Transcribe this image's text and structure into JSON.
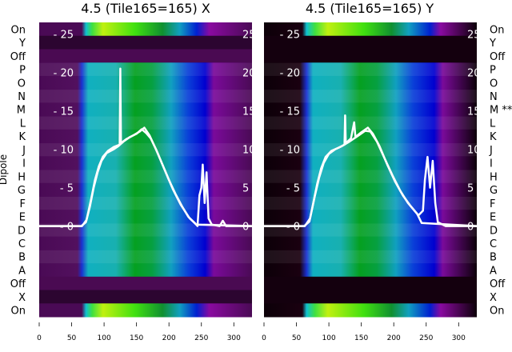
{
  "chart_data": {
    "type": "heatmap",
    "ylabel": "Dipole",
    "row_labels_left": [
      "On",
      "Y",
      "Off",
      "P",
      "O",
      "N",
      "M",
      "L",
      "K",
      "J",
      "I",
      "H",
      "G",
      "F",
      "E",
      "D",
      "C",
      "B",
      "A",
      "Off",
      "X",
      "On"
    ],
    "row_labels_right": [
      "On",
      "Y",
      "Off",
      "P",
      "O",
      "N",
      "M **",
      "L",
      "K",
      "J",
      "I",
      "H",
      "G",
      "F",
      "E",
      "D",
      "C",
      "B",
      "A",
      "Off",
      "X",
      "On"
    ],
    "x_ticks": [
      0,
      50,
      100,
      150,
      200,
      250,
      300
    ],
    "xlim": [
      0,
      328
    ],
    "inner_y_ticks": [
      0,
      5,
      10,
      15,
      20,
      25
    ],
    "inner_ylim": [
      -11.8,
      26.5
    ],
    "panels": [
      {
        "title": "4.5 (Tile165=165) X",
        "background": "purple",
        "lines": [
          {
            "name": "line-1",
            "points": [
              [
                0,
                0
              ],
              [
                65,
                0
              ],
              [
                72,
                0.5
              ],
              [
                78,
                2.5
              ],
              [
                84,
                5
              ],
              [
                90,
                7
              ],
              [
                96,
                8.5
              ],
              [
                104,
                9.5
              ],
              [
                115,
                10
              ],
              [
                122,
                10.4
              ],
              [
                130,
                11
              ],
              [
                140,
                11.6
              ],
              [
                150,
                12
              ],
              [
                158,
                12.6
              ],
              [
                165,
                12.1
              ],
              [
                172,
                11.4
              ],
              [
                180,
                10
              ],
              [
                190,
                8
              ],
              [
                200,
                6
              ],
              [
                210,
                4.2
              ],
              [
                220,
                2.6
              ],
              [
                230,
                1.2
              ],
              [
                240,
                0.4
              ],
              [
                244,
                0
              ],
              [
                247,
                4
              ],
              [
                250,
                5
              ],
              [
                252,
                8
              ],
              [
                255,
                3
              ],
              [
                258,
                7
              ],
              [
                261,
                1
              ],
              [
                266,
                0.2
              ],
              [
                278,
                0
              ],
              [
                283,
                0.7
              ],
              [
                288,
                0
              ],
              [
                328,
                0
              ]
            ]
          },
          {
            "name": "line-2",
            "points": [
              [
                0,
                0
              ],
              [
                66,
                0
              ],
              [
                73,
                0.8
              ],
              [
                80,
                3.5
              ],
              [
                86,
                6
              ],
              [
                92,
                7.8
              ],
              [
                98,
                9
              ],
              [
                106,
                9.8
              ],
              [
                115,
                10.3
              ],
              [
                124,
                10.6
              ],
              [
                125,
                20.5
              ],
              [
                126,
                10.8
              ],
              [
                134,
                11.3
              ],
              [
                145,
                11.8
              ],
              [
                155,
                12.3
              ],
              [
                162,
                12.8
              ],
              [
                170,
                11.8
              ],
              [
                182,
                9.6
              ],
              [
                194,
                7.2
              ],
              [
                206,
                4.8
              ],
              [
                218,
                2.8
              ],
              [
                232,
                1
              ],
              [
                242,
                0.2
              ],
              [
                328,
                0
              ]
            ]
          }
        ]
      },
      {
        "title": "4.5 (Tile165=165) Y",
        "background": "black",
        "lines": [
          {
            "name": "line-1",
            "points": [
              [
                0,
                0
              ],
              [
                62,
                0
              ],
              [
                70,
                0.6
              ],
              [
                76,
                3
              ],
              [
                82,
                5.5
              ],
              [
                88,
                7.5
              ],
              [
                95,
                9
              ],
              [
                104,
                9.8
              ],
              [
                115,
                10.2
              ],
              [
                124,
                10.6
              ],
              [
                125,
                14.4
              ],
              [
                126,
                10.8
              ],
              [
                134,
                11.4
              ],
              [
                139,
                13.5
              ],
              [
                141,
                11.6
              ],
              [
                150,
                12.2
              ],
              [
                160,
                12.8
              ],
              [
                168,
                12
              ],
              [
                178,
                10.4
              ],
              [
                190,
                8
              ],
              [
                202,
                5.8
              ],
              [
                214,
                4
              ],
              [
                226,
                2.6
              ],
              [
                238,
                1.4
              ],
              [
                245,
                2
              ],
              [
                248,
                6
              ],
              [
                252,
                9
              ],
              [
                256,
                5
              ],
              [
                260,
                8.5
              ],
              [
                264,
                3
              ],
              [
                268,
                0.5
              ],
              [
                280,
                0
              ],
              [
                328,
                0
              ]
            ]
          },
          {
            "name": "line-2",
            "points": [
              [
                0,
                0
              ],
              [
                63,
                0
              ],
              [
                71,
                1
              ],
              [
                78,
                3.8
              ],
              [
                85,
                6.3
              ],
              [
                92,
                8.2
              ],
              [
                100,
                9.4
              ],
              [
                110,
                10
              ],
              [
                120,
                10.4
              ],
              [
                132,
                11
              ],
              [
                146,
                11.8
              ],
              [
                156,
                12.4
              ],
              [
                164,
                12.3
              ],
              [
                174,
                11
              ],
              [
                186,
                8.8
              ],
              [
                198,
                6.6
              ],
              [
                210,
                4.6
              ],
              [
                222,
                3
              ],
              [
                236,
                1.6
              ],
              [
                243,
                0.4
              ],
              [
                328,
                0
              ]
            ]
          }
        ]
      }
    ]
  }
}
